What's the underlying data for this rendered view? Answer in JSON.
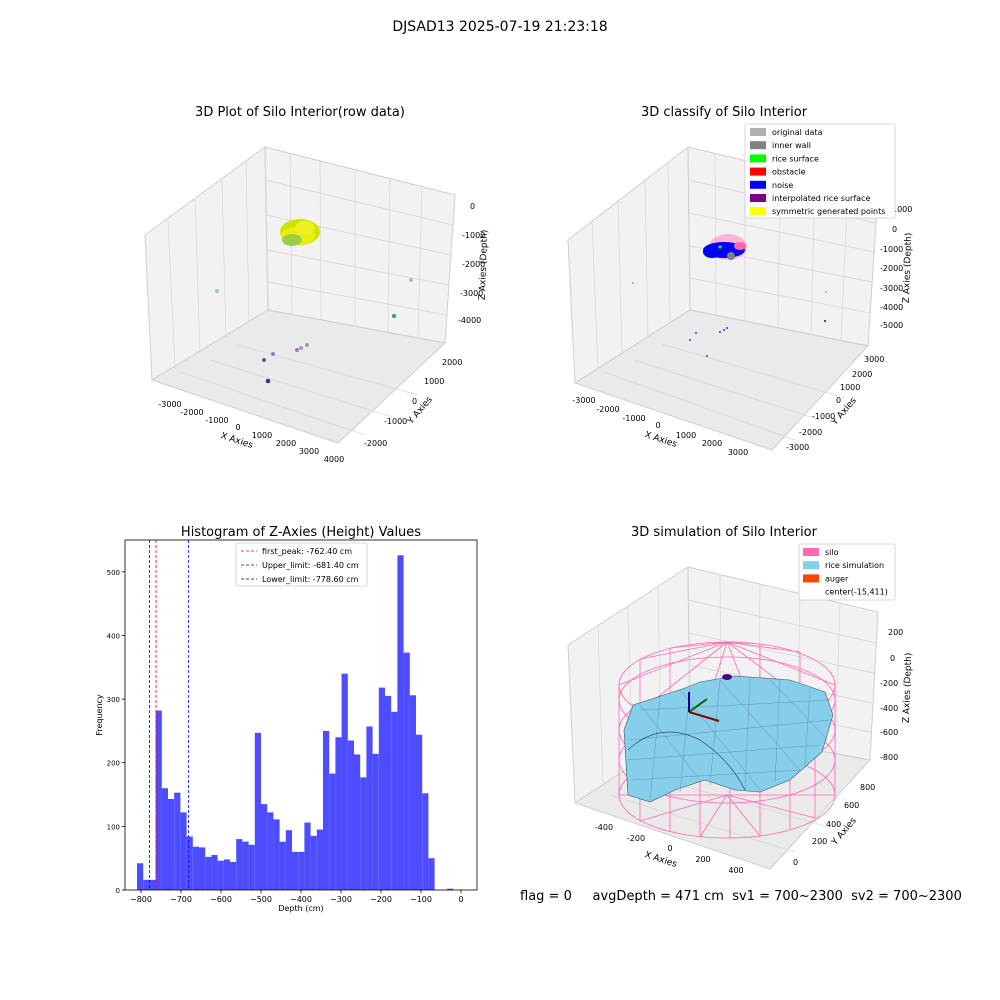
{
  "figure": {
    "title": "DJSAD13 2025-07-19 21:23:18"
  },
  "panels": {
    "raw": {
      "title": "3D Plot of Silo Interior(row data)",
      "xlabel": "X Axies",
      "ylabel": "Y Axies",
      "zlabel": "Z Axies (Depth)",
      "xticks": [
        "-3000",
        "-2000",
        "-1000",
        "0",
        "1000",
        "2000",
        "3000",
        "4000"
      ],
      "yticks": [
        "-2000",
        "-1000",
        "0",
        "1000",
        "2000"
      ],
      "zticks": [
        "0",
        "-1000",
        "-2000",
        "-3000",
        "-4000"
      ]
    },
    "classify": {
      "title": "3D classify of Silo Interior",
      "xlabel": "X Axies",
      "ylabel": "Y Axies",
      "zlabel": "Z Axies (Depth)",
      "xticks": [
        "-3000",
        "-2000",
        "-1000",
        "0",
        "1000",
        "2000",
        "3000"
      ],
      "yticks": [
        "-3000",
        "-2000",
        "-1000",
        "0",
        "1000",
        "2000",
        "3000"
      ],
      "zticks": [
        "1000",
        "0",
        "-1000",
        "-2000",
        "-3000",
        "-4000",
        "-5000"
      ],
      "legend": [
        {
          "label": "original data",
          "color": "#b0b0b0"
        },
        {
          "label": "inner wall",
          "color": "#808080"
        },
        {
          "label": "rice surface",
          "color": "#00ff00"
        },
        {
          "label": "obstacle",
          "color": "#ff0000"
        },
        {
          "label": "noise",
          "color": "#0000ff"
        },
        {
          "label": "interpolated rice surface",
          "color": "#800080"
        },
        {
          "label": "symmetric generated points",
          "color": "#ffff00"
        }
      ]
    },
    "simulation": {
      "title": "3D simulation of Silo Interior",
      "xlabel": "X Axies",
      "ylabel": "Y Axies",
      "zlabel": "Z Axies (Depth)",
      "xticks": [
        "-400",
        "-200",
        "0",
        "200",
        "400"
      ],
      "yticks": [
        "0",
        "200",
        "400",
        "600",
        "800"
      ],
      "zticks": [
        "200",
        "0",
        "-200",
        "-400",
        "-600",
        "-800"
      ],
      "legend": [
        {
          "label": "silo",
          "color": "#ff69b4"
        },
        {
          "label": "rice simulation",
          "color": "#87ceeb"
        },
        {
          "label": "auger",
          "color": "#ff4500"
        },
        {
          "label": "center(-15,411)",
          "color": ""
        }
      ]
    }
  },
  "status": {
    "flag": "flag = 0",
    "avg_depth": "avgDepth = 471 cm",
    "sv1": "sv1 = 700~2300",
    "sv2": "sv2 = 700~2300"
  },
  "chart_data": {
    "type": "bar",
    "title": "Histogram of Z-Axies (Height) Values",
    "xlabel": "Depth (cm)",
    "ylabel": "Frequency",
    "xlim": [
      -840,
      40
    ],
    "ylim": [
      0,
      550
    ],
    "xticks": [
      -800,
      -700,
      -600,
      -500,
      -400,
      -300,
      -200,
      -100,
      0
    ],
    "yticks": [
      0,
      100,
      200,
      300,
      400,
      500
    ],
    "bar_color": "#4d4dff",
    "bin_start": -810,
    "bin_width": 15.5,
    "values": [
      42,
      16,
      16,
      282,
      160,
      143,
      153,
      122,
      84,
      68,
      67,
      52,
      55,
      46,
      48,
      44,
      80,
      76,
      71,
      247,
      135,
      122,
      111,
      76,
      94,
      60,
      60,
      106,
      85,
      95,
      250,
      183,
      240,
      340,
      235,
      213,
      177,
      257,
      214,
      318,
      305,
      280,
      526,
      373,
      306,
      244,
      152,
      50,
      0,
      0,
      2
    ],
    "lines": [
      {
        "label": "first_peak: -762.40 cm",
        "x": -762.4,
        "color": "#ff0000"
      },
      {
        "label": "Upper_limit: -681.40 cm",
        "x": -681.4,
        "color": "#0000ff"
      },
      {
        "label": "Lower_limit: -778.60 cm",
        "x": -778.6,
        "color": "#000080"
      }
    ]
  }
}
